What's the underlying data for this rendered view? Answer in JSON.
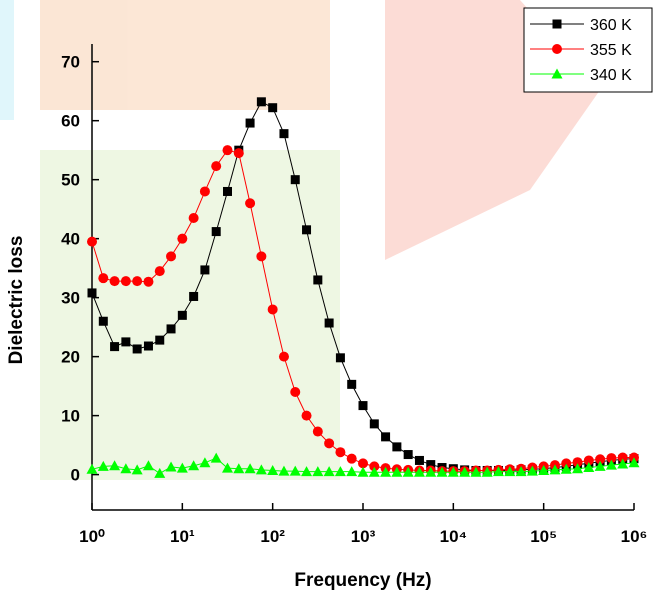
{
  "chart_data": {
    "type": "line",
    "x_label": "Frequency (Hz)",
    "y_label": "Dielectric loss",
    "x_log": true,
    "xlim": [
      1,
      1000000
    ],
    "xticks": [
      {
        "value": 1,
        "label": "10⁰"
      },
      {
        "value": 10,
        "label": "10¹"
      },
      {
        "value": 100,
        "label": "10²"
      },
      {
        "value": 1000,
        "label": "10³"
      },
      {
        "value": 10000,
        "label": "10⁴"
      },
      {
        "value": 100000,
        "label": "10⁵"
      },
      {
        "value": 1000000,
        "label": "10⁶"
      }
    ],
    "ylim": [
      -6,
      73
    ],
    "yticks": [
      0,
      10,
      20,
      30,
      40,
      50,
      60,
      70
    ],
    "legend": "top-right",
    "x": [
      1,
      1.334,
      1.778,
      2.371,
      3.162,
      4.217,
      5.623,
      7.499,
      10,
      13.34,
      17.78,
      23.71,
      31.62,
      42.17,
      56.23,
      74.99,
      100,
      133.4,
      177.8,
      237.1,
      316.2,
      421.7,
      562.3,
      749.9,
      1000,
      1334,
      1778,
      2371,
      3162,
      4217,
      5623,
      7499,
      10000,
      13340,
      17780,
      23710,
      31620,
      42170,
      56230,
      74990,
      100000,
      133400,
      177800,
      237100,
      316200,
      421700,
      562300,
      749900,
      1000000
    ],
    "series": [
      {
        "name": "360 K",
        "color": "#000000",
        "marker": "square",
        "values": [
          30.8,
          26,
          21.7,
          22.5,
          21.3,
          21.8,
          22.8,
          24.7,
          27,
          30.2,
          34.7,
          41.2,
          48,
          55,
          59.6,
          63.2,
          62.2,
          57.8,
          50,
          41.5,
          33,
          25.7,
          19.8,
          15.3,
          11.7,
          8.6,
          6.4,
          4.7,
          3.4,
          2.4,
          1.7,
          1.2,
          1,
          0.8,
          0.7,
          0.7,
          0.7,
          0.7,
          0.8,
          0.9,
          1.0,
          1.2,
          1.4,
          1.7,
          1.9,
          2.2,
          2.4,
          2.6,
          2.7
        ]
      },
      {
        "name": "355 K",
        "color": "#ff0000",
        "marker": "circle",
        "values": [
          39.5,
          33.3,
          32.8,
          32.8,
          32.8,
          32.7,
          34.5,
          37,
          40,
          43.5,
          48,
          52.3,
          55,
          54.5,
          46,
          37,
          28,
          20,
          14,
          10,
          7.3,
          5.3,
          3.8,
          2.7,
          1.9,
          1.4,
          1.1,
          0.9,
          0.8,
          0.7,
          0.7,
          0.6,
          0.6,
          0.6,
          0.7,
          0.7,
          0.8,
          0.9,
          1.0,
          1.2,
          1.4,
          1.6,
          1.9,
          2.1,
          2.4,
          2.6,
          2.8,
          2.9,
          2.9
        ]
      },
      {
        "name": "340 K",
        "color": "#00ff00",
        "marker": "triangle",
        "values": [
          0.9,
          1.4,
          1.5,
          1.0,
          0.8,
          1.5,
          0.2,
          1.3,
          1.1,
          1.5,
          2.0,
          2.8,
          1.1,
          1.0,
          1.0,
          0.8,
          0.7,
          0.6,
          0.6,
          0.5,
          0.5,
          0.5,
          0.5,
          0.5,
          0.4,
          0.4,
          0.4,
          0.4,
          0.4,
          0.4,
          0.4,
          0.4,
          0.4,
          0.4,
          0.4,
          0.4,
          0.5,
          0.5,
          0.5,
          0.6,
          0.7,
          0.8,
          0.9,
          1.0,
          1.2,
          1.4,
          1.6,
          1.8,
          2.0
        ]
      }
    ]
  }
}
